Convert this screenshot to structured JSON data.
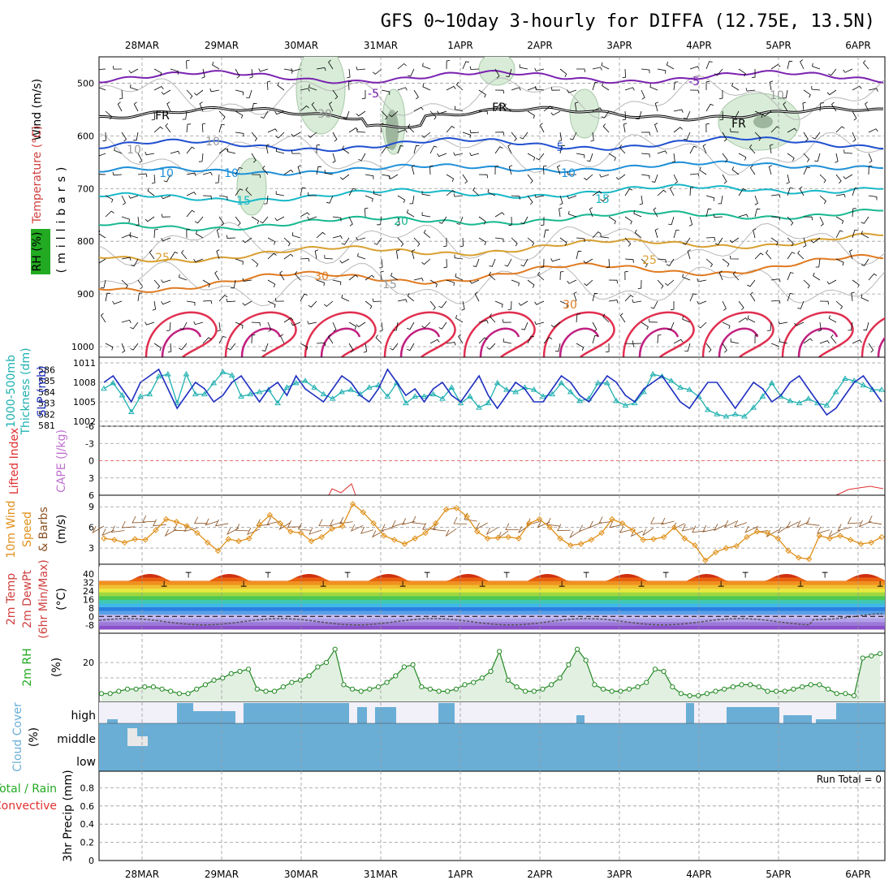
{
  "title": "GFS 0~10day 3-hourly for DIFFA (12.75E, 13.5N)",
  "dates": [
    "28MAR",
    "29MAR",
    "30MAR",
    "31MAR",
    "1APR",
    "2APR",
    "3APR",
    "4APR",
    "5APR",
    "6APR"
  ],
  "colors": {
    "temperature": "#e05050",
    "wind": "#7a3fb0",
    "rh": "#22aa22",
    "thickness": "#20b0b0",
    "slp": "#2030c0",
    "lifted": "#e03030",
    "cape": "#c070d0",
    "wind10": "#e0901a",
    "cloud": "#6aaed6",
    "precip": "#22aa22"
  },
  "panels": {
    "upper": {
      "labels": {
        "wind": "Wind (m/s)",
        "temperature": "Temperature (°C)",
        "rh": "RH (%)",
        "millibars": "(millibars)"
      },
      "pressure_ticks": [
        "500",
        "600",
        "700",
        "800",
        "900",
        "1000"
      ],
      "contour_labels": [
        "-5",
        "-5",
        "FR",
        "FR",
        "FR",
        "5",
        "10",
        "10",
        "10",
        "15",
        "15",
        "20",
        "25",
        "25",
        "30",
        "30",
        "10",
        "10",
        "30",
        "10",
        "15"
      ]
    },
    "thickness": {
      "labels": {
        "left": "1000-500mb",
        "left2": "Thickness (dm)",
        "right": "SLP (mb)"
      },
      "left_ticks": [
        "586",
        "585",
        "584",
        "583",
        "582",
        "581"
      ],
      "right_ticks": [
        "1011",
        "1008",
        "1005",
        "1002"
      ]
    },
    "lifted": {
      "labels": {
        "left": "Lifted Index",
        "right": "CAPE (J/kg)"
      },
      "ticks": [
        "-6",
        "-3",
        "0",
        "3",
        "6"
      ]
    },
    "wind10": {
      "labels": {
        "l1": "10m Wind",
        "l2": "Speed",
        "l3": "& Barbs",
        "l4": "(m/s)"
      },
      "ticks": [
        "9",
        "6",
        "3"
      ]
    },
    "temp2m": {
      "labels": {
        "l1": "2m Temp",
        "l2": "2m DewPt",
        "l3": "(6hr Min/Max)",
        "l4": "(°C)"
      },
      "ticks": [
        "40",
        "32",
        "24",
        "16",
        "8",
        "0",
        "-8"
      ]
    },
    "rh2m": {
      "labels": {
        "l1": "2m RH",
        "l2": "(%)"
      },
      "ticks": [
        "20"
      ]
    },
    "cloud": {
      "labels": {
        "l1": "Cloud Cover",
        "l2": "(%)",
        "high": "high",
        "middle": "middle",
        "low": "low"
      }
    },
    "precip": {
      "labels": {
        "l1": "Total / Rain",
        "l2": "Convective",
        "l3": "3hr Precip (mm)",
        "run_total": "Run Total = 0"
      },
      "ticks": [
        "0.8",
        "0.6",
        "0.4",
        "0.2",
        "0"
      ]
    }
  },
  "chart_data": {
    "type": "line",
    "x_dates": [
      "28MAR",
      "29MAR",
      "30MAR",
      "31MAR",
      "1APR",
      "2APR",
      "3APR",
      "4APR",
      "5APR",
      "6APR"
    ],
    "temp2m_daily_max": [
      40,
      40,
      40,
      40,
      40,
      40,
      40,
      40,
      40,
      41
    ],
    "temp2m_daily_min": [
      27,
      27,
      27,
      27,
      27,
      27,
      27,
      27,
      27,
      27
    ],
    "thickness_dm": [
      584.3,
      584.8,
      583.7,
      582.2,
      583.6,
      583.8,
      585.4,
      585.6,
      583.0,
      585.6,
      583.8,
      583.8,
      584.8,
      585.8,
      585.5,
      583.6,
      583.8,
      584.0,
      584.2,
      583.0,
      584.4,
      584.8,
      585.0,
      584.4,
      583.8,
      583.4,
      584.0,
      584.2,
      583.8,
      584.4,
      584.6,
      583.6,
      584.8,
      583.0,
      583.6,
      583.6,
      583.8,
      583.4,
      584.4,
      583.0,
      583.6,
      582.6,
      583.0,
      584.8,
      584.2,
      584.0,
      584.4,
      584.2,
      583.6,
      583.8,
      584.8,
      584.0,
      583.2,
      583.4,
      584.8,
      584.8,
      583.2,
      582.8,
      583.0,
      584.0,
      585.6,
      585.4,
      585.0,
      584.4,
      584.2,
      583.6,
      582.4,
      582.0,
      581.8,
      582.0,
      581.8,
      582.6,
      583.6,
      584.8,
      583.6,
      583.2,
      583.0,
      583.4,
      583.0,
      582.8,
      584.0,
      585.2,
      585.0,
      584.6,
      584.2,
      584.2
    ],
    "slp_mb": [
      1008,
      1009,
      1007,
      1005,
      1008,
      1009,
      1010,
      1007,
      1004,
      1006,
      1008,
      1007,
      1005,
      1006,
      1008,
      1009,
      1007,
      1005,
      1007,
      1008,
      1006,
      1009,
      1007,
      1006,
      1005,
      1007,
      1009,
      1008,
      1006,
      1005,
      1007,
      1010,
      1008,
      1006,
      1007,
      1005,
      1007,
      1008,
      1006,
      1005,
      1007,
      1009,
      1006,
      1004,
      1006,
      1008,
      1007,
      1005,
      1005,
      1007,
      1009,
      1008,
      1006,
      1005,
      1007,
      1009,
      1008,
      1006,
      1005,
      1007,
      1008,
      1009,
      1007,
      1005,
      1004,
      1006,
      1008,
      1008,
      1006,
      1004,
      1006,
      1008,
      1007,
      1005,
      1006,
      1008,
      1009,
      1007,
      1005,
      1003,
      1004,
      1006,
      1008,
      1009,
      1007,
      1005
    ],
    "wind10_ms": [
      4.4,
      4.2,
      3.8,
      4.3,
      4.2,
      5.6,
      7.2,
      6.8,
      6.2,
      5.2,
      3.8,
      2.6,
      4.3,
      4.0,
      4.4,
      6.4,
      7.8,
      6.6,
      5.4,
      5.2,
      4.0,
      4.6,
      5.8,
      6.2,
      9.4,
      8.2,
      6.6,
      4.8,
      4.2,
      3.6,
      4.4,
      5.2,
      6.6,
      8.6,
      8.8,
      7.6,
      5.4,
      4.4,
      4.5,
      4.6,
      4.4,
      6.6,
      7.2,
      6.0,
      4.4,
      3.4,
      3.6,
      4.2,
      5.2,
      7.2,
      6.6,
      5.6,
      4.2,
      4.3,
      4.6,
      6.0,
      4.4,
      3.4,
      1.2,
      2.4,
      3.0,
      3.3,
      4.6,
      5.4,
      5.2,
      4.4,
      2.6,
      1.6,
      1.4,
      4.8,
      4.4,
      4.8,
      4.2,
      3.6,
      3.8,
      4.6
    ],
    "rh2m_pct": [
      6,
      6,
      7,
      8,
      8,
      9,
      9,
      8,
      7,
      6,
      6,
      8,
      10,
      12,
      13,
      15,
      16,
      17,
      8,
      7,
      7,
      9,
      11,
      12,
      14,
      18,
      20,
      26,
      10,
      8,
      7,
      8,
      9,
      11,
      14,
      18,
      19,
      9,
      8,
      7,
      7,
      8,
      10,
      11,
      13,
      16,
      25,
      12,
      9,
      7,
      7,
      8,
      10,
      13,
      19,
      26,
      21,
      10,
      8,
      7,
      7,
      8,
      9,
      11,
      17,
      16,
      9,
      6,
      5,
      5,
      6,
      7,
      8,
      9,
      10,
      10,
      9,
      7,
      7,
      7,
      8,
      9,
      10,
      10,
      8,
      6,
      6,
      5,
      22,
      23,
      24
    ]
  }
}
